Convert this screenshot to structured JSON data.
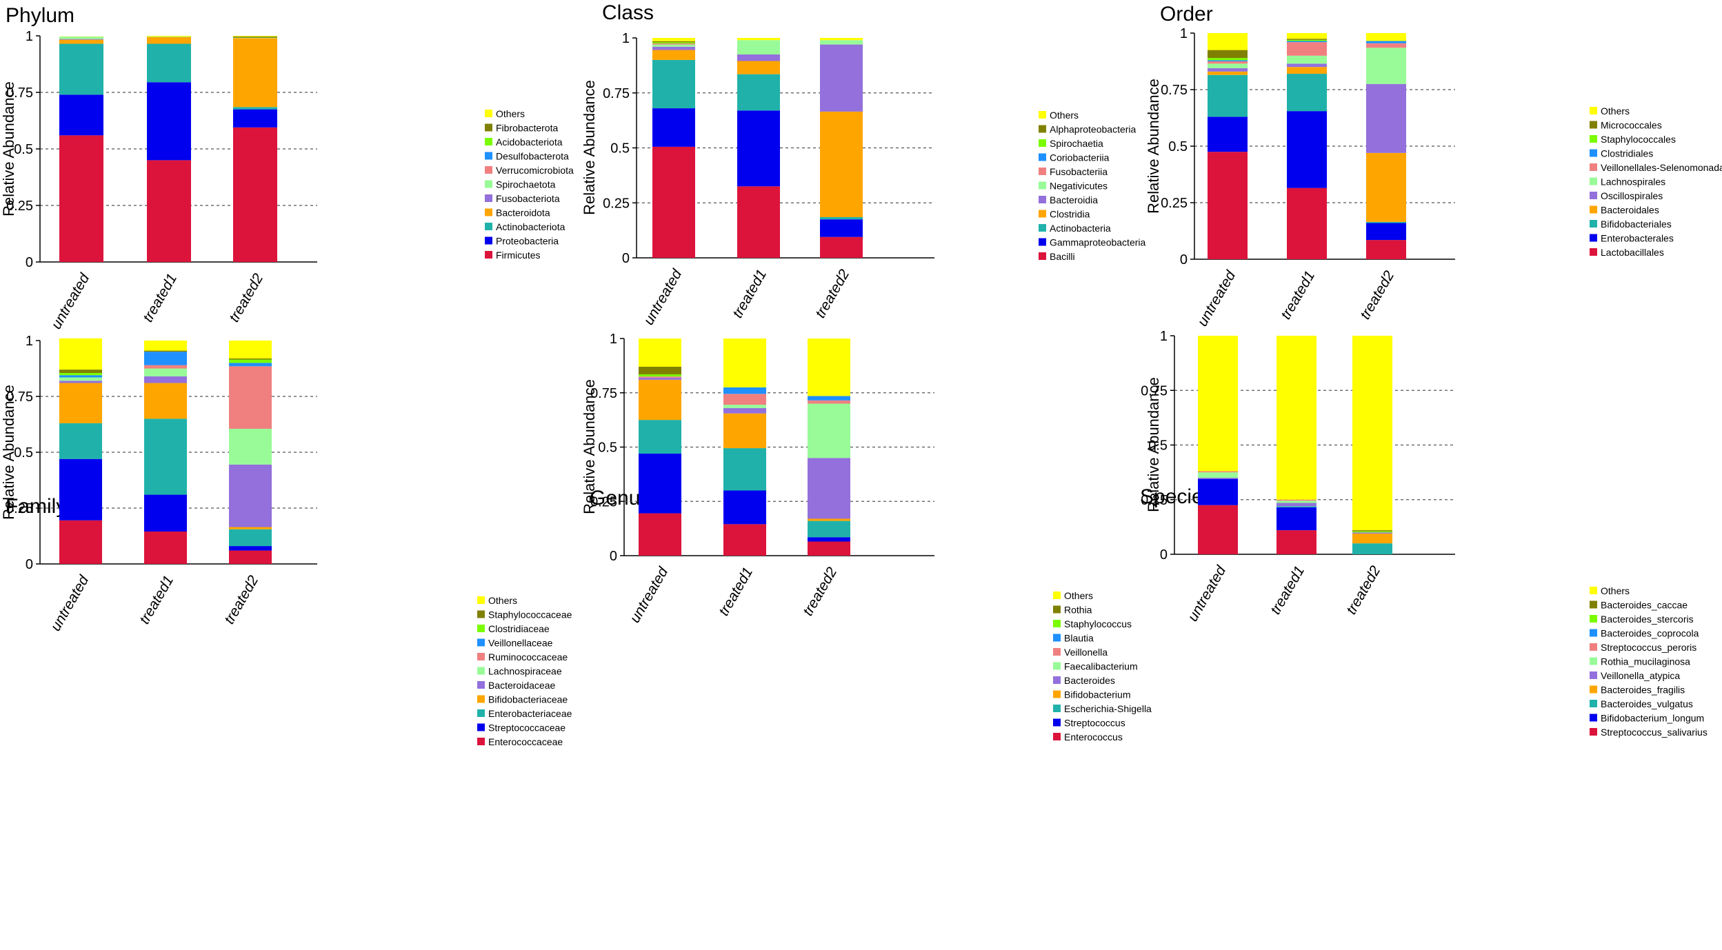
{
  "chart_data": [
    {
      "type": "bar",
      "stacked": true,
      "title": "Phylum",
      "ylabel": "Relative Abundance",
      "ylim": [
        0,
        1
      ],
      "yticks": [
        "0",
        "0.25",
        "0.5",
        "0.75",
        "1"
      ],
      "categories": [
        "untreated",
        "treated1",
        "treated2"
      ],
      "series": [
        {
          "name": "Firmicutes",
          "color": "#DC143C",
          "values": [
            0.56,
            0.45,
            0.595
          ]
        },
        {
          "name": "Proteobacteria",
          "color": "#0000EE",
          "values": [
            0.18,
            0.345,
            0.08
          ]
        },
        {
          "name": "Actinobacteriota",
          "color": "#20B2AA",
          "values": [
            0.225,
            0.17,
            0.01
          ]
        },
        {
          "name": "Bacteroidota",
          "color": "#FFA500",
          "values": [
            0.018,
            0.03,
            0.305
          ]
        },
        {
          "name": "Fusobacteriota",
          "color": "#9370DB",
          "values": [
            0.003,
            0.0,
            0.0
          ]
        },
        {
          "name": "Spirochaetota",
          "color": "#98FB98",
          "values": [
            0.008,
            0.002,
            0.002
          ]
        },
        {
          "name": "Verrucomicrobiota",
          "color": "#F08080",
          "values": [
            0.0,
            0.0,
            0.0
          ]
        },
        {
          "name": "Desulfobacterota",
          "color": "#1E90FF",
          "values": [
            0.0,
            0.0,
            0.0
          ]
        },
        {
          "name": "Acidobacteriota",
          "color": "#7CFC00",
          "values": [
            0.002,
            0.0,
            0.0
          ]
        },
        {
          "name": "Fibrobacterota",
          "color": "#808000",
          "values": [
            0.0,
            0.0,
            0.005
          ]
        },
        {
          "name": "Others",
          "color": "#FFFF00",
          "values": [
            0.0,
            0.003,
            0.003
          ]
        }
      ]
    },
    {
      "type": "bar",
      "stacked": true,
      "title": "Class",
      "ylabel": "Relative Abundance",
      "ylim": [
        0,
        1
      ],
      "yticks": [
        "0",
        "0.25",
        "0.5",
        "0.75",
        "1"
      ],
      "categories": [
        "untreated",
        "treated1",
        "treated2"
      ],
      "series": [
        {
          "name": "Bacilli",
          "color": "#DC143C",
          "values": [
            0.505,
            0.325,
            0.095
          ]
        },
        {
          "name": "Gammaproteobacteria",
          "color": "#0000EE",
          "values": [
            0.175,
            0.345,
            0.08
          ]
        },
        {
          "name": "Actinobacteria",
          "color": "#20B2AA",
          "values": [
            0.22,
            0.165,
            0.01
          ]
        },
        {
          "name": "Clostridia",
          "color": "#FFA500",
          "values": [
            0.045,
            0.06,
            0.48
          ]
        },
        {
          "name": "Bacteroidia",
          "color": "#9370DB",
          "values": [
            0.015,
            0.03,
            0.305
          ]
        },
        {
          "name": "Negativicutes",
          "color": "#98FB98",
          "values": [
            0.01,
            0.065,
            0.02
          ]
        },
        {
          "name": "Fusobacteriia",
          "color": "#F08080",
          "values": [
            0.005,
            0.0,
            0.0
          ]
        },
        {
          "name": "Coriobacteriia",
          "color": "#1E90FF",
          "values": [
            0.0,
            0.0,
            0.0
          ]
        },
        {
          "name": "Spirochaetia",
          "color": "#7CFC00",
          "values": [
            0.005,
            0.0,
            0.0
          ]
        },
        {
          "name": "Alphaproteobacteria",
          "color": "#808000",
          "values": [
            0.005,
            0.0,
            0.0
          ]
        },
        {
          "name": "Others",
          "color": "#FFFF00",
          "values": [
            0.015,
            0.01,
            0.01
          ]
        }
      ]
    },
    {
      "type": "bar",
      "stacked": true,
      "title": "Order",
      "ylabel": "Relative Abundance",
      "ylim": [
        0,
        1
      ],
      "yticks": [
        "0",
        "0.25",
        "0.5",
        "0.75",
        "1"
      ],
      "categories": [
        "untreated",
        "treated1",
        "treated2"
      ],
      "series": [
        {
          "name": "Lactobacillales",
          "color": "#DC143C",
          "values": [
            0.475,
            0.315,
            0.085
          ]
        },
        {
          "name": "Enterobacterales",
          "color": "#0000EE",
          "values": [
            0.155,
            0.34,
            0.075
          ]
        },
        {
          "name": "Bifidobacteriales",
          "color": "#20B2AA",
          "values": [
            0.185,
            0.165,
            0.005
          ]
        },
        {
          "name": "Bacteroidales",
          "color": "#FFA500",
          "values": [
            0.015,
            0.03,
            0.305
          ]
        },
        {
          "name": "Oscillospirales",
          "color": "#9370DB",
          "values": [
            0.015,
            0.015,
            0.305
          ]
        },
        {
          "name": "Lachnospirales",
          "color": "#98FB98",
          "values": [
            0.02,
            0.035,
            0.16
          ]
        },
        {
          "name": "Veillonellales-Selenomonadales",
          "color": "#F08080",
          "values": [
            0.01,
            0.06,
            0.02
          ]
        },
        {
          "name": "Clostridiales",
          "color": "#1E90FF",
          "values": [
            0.005,
            0.005,
            0.01
          ]
        },
        {
          "name": "Staphylococcales",
          "color": "#7CFC00",
          "values": [
            0.01,
            0.005,
            0.0
          ]
        },
        {
          "name": "Micrococcales",
          "color": "#808000",
          "values": [
            0.035,
            0.005,
            0.0
          ]
        },
        {
          "name": "Others",
          "color": "#FFFF00",
          "values": [
            0.075,
            0.025,
            0.035
          ]
        }
      ]
    },
    {
      "type": "bar",
      "stacked": true,
      "title": "Family",
      "ylabel": "Relative Abundance",
      "ylim": [
        0,
        1
      ],
      "yticks": [
        "0",
        "0.25",
        "0.5",
        "0.75",
        "1"
      ],
      "categories": [
        "untreated",
        "treated1",
        "treated2"
      ],
      "series": [
        {
          "name": "Enterococcaceae",
          "color": "#DC143C",
          "values": [
            0.195,
            0.145,
            0.06
          ]
        },
        {
          "name": "Streptococcaceae",
          "color": "#0000EE",
          "values": [
            0.275,
            0.165,
            0.02
          ]
        },
        {
          "name": "Enterobacteriaceae",
          "color": "#20B2AA",
          "values": [
            0.16,
            0.34,
            0.075
          ]
        },
        {
          "name": "Bifidobacteriaceae",
          "color": "#FFA500",
          "values": [
            0.18,
            0.16,
            0.01
          ]
        },
        {
          "name": "Bacteroidaceae",
          "color": "#9370DB",
          "values": [
            0.01,
            0.03,
            0.28
          ]
        },
        {
          "name": "Lachnospiraceae",
          "color": "#98FB98",
          "values": [
            0.015,
            0.035,
            0.16
          ]
        },
        {
          "name": "Ruminococcaceae",
          "color": "#F08080",
          "values": [
            0.0,
            0.015,
            0.28
          ]
        },
        {
          "name": "Veillonellaceae",
          "color": "#1E90FF",
          "values": [
            0.01,
            0.06,
            0.015
          ]
        },
        {
          "name": "Clostridiaceae",
          "color": "#7CFC00",
          "values": [
            0.01,
            0.0,
            0.015
          ]
        },
        {
          "name": "Staphylococcaceae",
          "color": "#808000",
          "values": [
            0.015,
            0.005,
            0.005
          ]
        },
        {
          "name": "Others",
          "color": "#FFFF00",
          "values": [
            0.14,
            0.045,
            0.08
          ]
        }
      ]
    },
    {
      "type": "bar",
      "stacked": true,
      "title": "Genus",
      "ylabel": "Relative Abundance",
      "ylim": [
        0,
        1
      ],
      "yticks": [
        "0",
        "0.25",
        "0.5",
        "0.75",
        "1"
      ],
      "categories": [
        "untreated",
        "treated1",
        "treated2"
      ],
      "series": [
        {
          "name": "Enterococcus",
          "color": "#DC143C",
          "values": [
            0.195,
            0.145,
            0.065
          ]
        },
        {
          "name": "Streptococcus",
          "color": "#0000EE",
          "values": [
            0.275,
            0.155,
            0.02
          ]
        },
        {
          "name": "Escherichia-Shigella",
          "color": "#20B2AA",
          "values": [
            0.155,
            0.195,
            0.075
          ]
        },
        {
          "name": "Bifidobacterium",
          "color": "#FFA500",
          "values": [
            0.185,
            0.16,
            0.01
          ]
        },
        {
          "name": "Bacteroides",
          "color": "#9370DB",
          "values": [
            0.01,
            0.025,
            0.28
          ]
        },
        {
          "name": "Faecalibacterium",
          "color": "#98FB98",
          "values": [
            0.0,
            0.015,
            0.25
          ]
        },
        {
          "name": "Veillonella",
          "color": "#F08080",
          "values": [
            0.005,
            0.05,
            0.015
          ]
        },
        {
          "name": "Blautia",
          "color": "#1E90FF",
          "values": [
            0.0,
            0.03,
            0.02
          ]
        },
        {
          "name": "Staphylococcus",
          "color": "#7CFC00",
          "values": [
            0.01,
            0.0,
            0.0
          ]
        },
        {
          "name": "Rothia",
          "color": "#808000",
          "values": [
            0.035,
            0.0,
            0.0
          ]
        },
        {
          "name": "Others",
          "color": "#FFFF00",
          "values": [
            0.13,
            0.225,
            0.265
          ]
        }
      ]
    },
    {
      "type": "bar",
      "stacked": true,
      "title": "Species",
      "ylabel": "Relative Abundance",
      "ylim": [
        0,
        1
      ],
      "yticks": [
        "0",
        "0.25",
        "0.5",
        "0.75",
        "1"
      ],
      "categories": [
        "untreated",
        "treated1",
        "treated2"
      ],
      "series": [
        {
          "name": "Streptococcus_salivarius",
          "color": "#DC143C",
          "values": [
            0.225,
            0.11,
            0.0
          ]
        },
        {
          "name": "Bifidobacterium_longum",
          "color": "#0000EE",
          "values": [
            0.12,
            0.105,
            0.0
          ]
        },
        {
          "name": "Bacteroides_vulgatus",
          "color": "#20B2AA",
          "values": [
            0.0,
            0.005,
            0.05
          ]
        },
        {
          "name": "Bacteroides_fragilis",
          "color": "#FFA500",
          "values": [
            0.0,
            0.0,
            0.045
          ]
        },
        {
          "name": "Veillonella_atypica",
          "color": "#9370DB",
          "values": [
            0.005,
            0.015,
            0.005
          ]
        },
        {
          "name": "Rothia_mucilaginosa",
          "color": "#98FB98",
          "values": [
            0.025,
            0.01,
            0.0
          ]
        },
        {
          "name": "Streptococcus_peroris",
          "color": "#F08080",
          "values": [
            0.005,
            0.005,
            0.0
          ]
        },
        {
          "name": "Bacteroides_coprocola",
          "color": "#1E90FF",
          "values": [
            0.0,
            0.0,
            0.0
          ]
        },
        {
          "name": "Bacteroides_stercoris",
          "color": "#7CFC00",
          "values": [
            0.0,
            0.0,
            0.005
          ]
        },
        {
          "name": "Bacteroides_caccae",
          "color": "#808000",
          "values": [
            0.0,
            0.0,
            0.005
          ]
        },
        {
          "name": "Others",
          "color": "#FFFF00",
          "values": [
            0.62,
            0.75,
            0.89
          ]
        }
      ]
    }
  ]
}
